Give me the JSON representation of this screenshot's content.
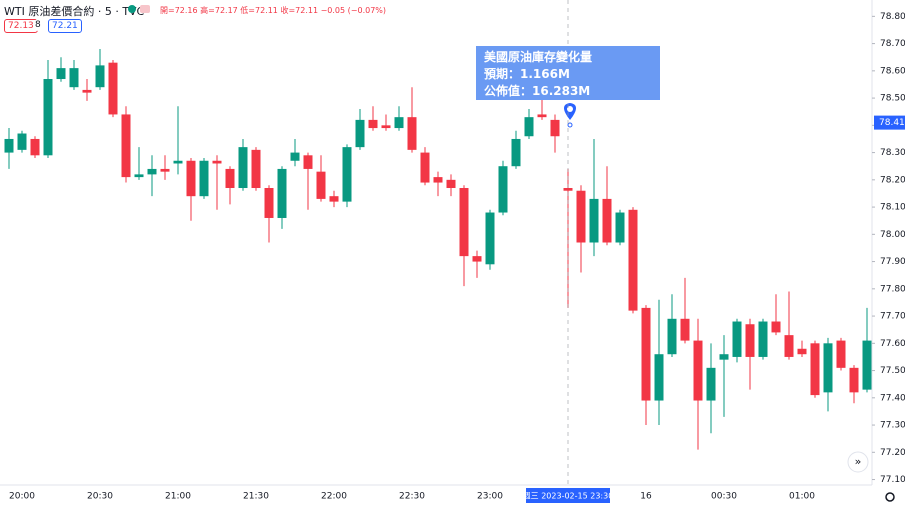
{
  "header": {
    "symbol": "WTI 原油差價合約 · 5 · TVC",
    "ohlc": "開=72.16 高=72.17 低=72.11 收=72.11 −0.05 (−0.07%)",
    "bid": "72.13",
    "spread": "8",
    "ask": "72.21"
  },
  "event": {
    "title": "美國原油庫存變化量",
    "forecast": "預期：1.166M",
    "actual": "公佈值：16.283M"
  },
  "chart_data": {
    "type": "candlestick",
    "categories": [
      null,
      "20:00",
      null,
      null,
      null,
      null,
      null,
      "20:30",
      null,
      null,
      null,
      null,
      null,
      "21:00",
      null,
      null,
      null,
      null,
      null,
      "21:30",
      null,
      null,
      null,
      null,
      null,
      "22:00",
      null,
      null,
      null,
      null,
      null,
      "22:30",
      null,
      null,
      null,
      null,
      null,
      "23:00",
      null,
      null,
      null,
      null,
      null,
      "週三 2023-02-15   23:30",
      null,
      null,
      null,
      null,
      null,
      "16",
      null,
      null,
      null,
      null,
      null,
      "00:30",
      null,
      null,
      null,
      null,
      null,
      "01:00",
      null,
      null,
      null,
      null,
      null
    ],
    "open": [
      78.3,
      78.31,
      78.35,
      78.29,
      78.57,
      78.54,
      78.53,
      78.54,
      78.63,
      78.44,
      78.21,
      78.22,
      78.24,
      78.26,
      78.27,
      78.14,
      78.27,
      78.24,
      78.17,
      78.31,
      78.17,
      78.06,
      78.27,
      78.29,
      78.23,
      78.14,
      78.12,
      78.32,
      78.42,
      78.4,
      78.39,
      78.43,
      78.3,
      78.21,
      78.2,
      78.17,
      77.92,
      77.89,
      78.08,
      78.25,
      78.36,
      78.44,
      78.42,
      78.17,
      78.16,
      77.97,
      78.13,
      77.97,
      78.09,
      77.73,
      77.39,
      77.56,
      77.69,
      77.61,
      77.39,
      77.54,
      77.55,
      77.67,
      77.55,
      77.68,
      77.63,
      77.58,
      77.6,
      77.42,
      77.61,
      77.51,
      77.43
    ],
    "high": [
      78.39,
      78.38,
      78.36,
      78.64,
      78.65,
      78.64,
      78.57,
      78.68,
      78.64,
      78.47,
      78.32,
      78.29,
      78.29,
      78.47,
      78.28,
      78.28,
      78.29,
      78.25,
      78.35,
      78.32,
      78.18,
      78.25,
      78.35,
      78.3,
      78.29,
      78.16,
      78.33,
      78.46,
      78.47,
      78.44,
      78.47,
      78.54,
      78.32,
      78.23,
      78.22,
      78.18,
      77.94,
      78.09,
      78.27,
      78.38,
      78.46,
      78.51,
      78.44,
      78.24,
      78.18,
      78.35,
      78.25,
      78.09,
      78.1,
      77.74,
      77.76,
      77.78,
      77.84,
      77.69,
      77.6,
      77.63,
      77.69,
      77.69,
      77.69,
      77.78,
      77.79,
      77.61,
      77.61,
      77.62,
      77.62,
      77.52,
      77.73
    ],
    "low": [
      78.24,
      78.3,
      78.28,
      78.28,
      78.56,
      78.53,
      78.49,
      78.53,
      78.43,
      78.19,
      78.2,
      78.14,
      78.2,
      78.22,
      78.05,
      78.13,
      78.09,
      78.11,
      78.16,
      78.16,
      77.97,
      78.02,
      78.25,
      78.09,
      78.12,
      78.1,
      78.1,
      78.31,
      78.38,
      78.38,
      78.38,
      78.3,
      78.18,
      78.14,
      78.14,
      77.81,
      77.84,
      77.87,
      78.07,
      78.24,
      78.35,
      78.42,
      78.3,
      77.73,
      77.86,
      77.92,
      77.96,
      77.96,
      77.71,
      77.3,
      77.3,
      77.55,
      77.6,
      77.21,
      77.27,
      77.33,
      77.53,
      77.43,
      77.54,
      77.63,
      77.54,
      77.55,
      77.4,
      77.35,
      77.5,
      77.38,
      77.42
    ],
    "close": [
      78.35,
      78.37,
      78.29,
      78.57,
      78.61,
      78.61,
      78.52,
      78.62,
      78.44,
      78.21,
      78.22,
      78.24,
      78.23,
      78.27,
      78.14,
      78.27,
      78.26,
      78.17,
      78.32,
      78.17,
      78.06,
      78.24,
      78.3,
      78.24,
      78.13,
      78.12,
      78.32,
      78.42,
      78.39,
      78.39,
      78.43,
      78.31,
      78.19,
      78.19,
      78.17,
      77.92,
      77.9,
      78.08,
      78.25,
      78.35,
      78.43,
      78.43,
      78.36,
      78.16,
      77.97,
      78.13,
      77.97,
      78.08,
      77.72,
      77.39,
      77.56,
      77.69,
      77.61,
      77.39,
      77.51,
      77.56,
      77.68,
      77.55,
      77.68,
      77.64,
      77.55,
      77.56,
      77.41,
      77.6,
      77.51,
      77.42,
      77.61
    ],
    "up_color": "#089981",
    "down_color": "#f23645",
    "ylim": [
      77.08,
      78.86
    ],
    "yticks": [
      {
        "value": 77.1,
        "label": "77.10"
      },
      {
        "value": 77.2,
        "label": "77.20"
      },
      {
        "value": 77.3,
        "label": "77.30"
      },
      {
        "value": 77.4,
        "label": "77.40"
      },
      {
        "value": 77.5,
        "label": "77.50"
      },
      {
        "value": 77.6,
        "label": "77.60"
      },
      {
        "value": 77.7,
        "label": "77.70"
      },
      {
        "value": 77.8,
        "label": "77.80"
      },
      {
        "value": 77.9,
        "label": "77.90"
      },
      {
        "value": 78.0,
        "label": "78.00"
      },
      {
        "value": 78.1,
        "label": "78.10"
      },
      {
        "value": 78.2,
        "label": "78.20"
      },
      {
        "value": 78.3,
        "label": "78.30"
      },
      {
        "value": 78.4,
        "label": "78.40"
      },
      {
        "value": 78.5,
        "label": "78.50"
      },
      {
        "value": 78.6,
        "label": "78.60"
      },
      {
        "value": 78.7,
        "label": "78.70"
      },
      {
        "value": 78.8,
        "label": "78.80"
      }
    ],
    "grid": false,
    "highlight_category": 43,
    "last_price": 78.41
  }
}
